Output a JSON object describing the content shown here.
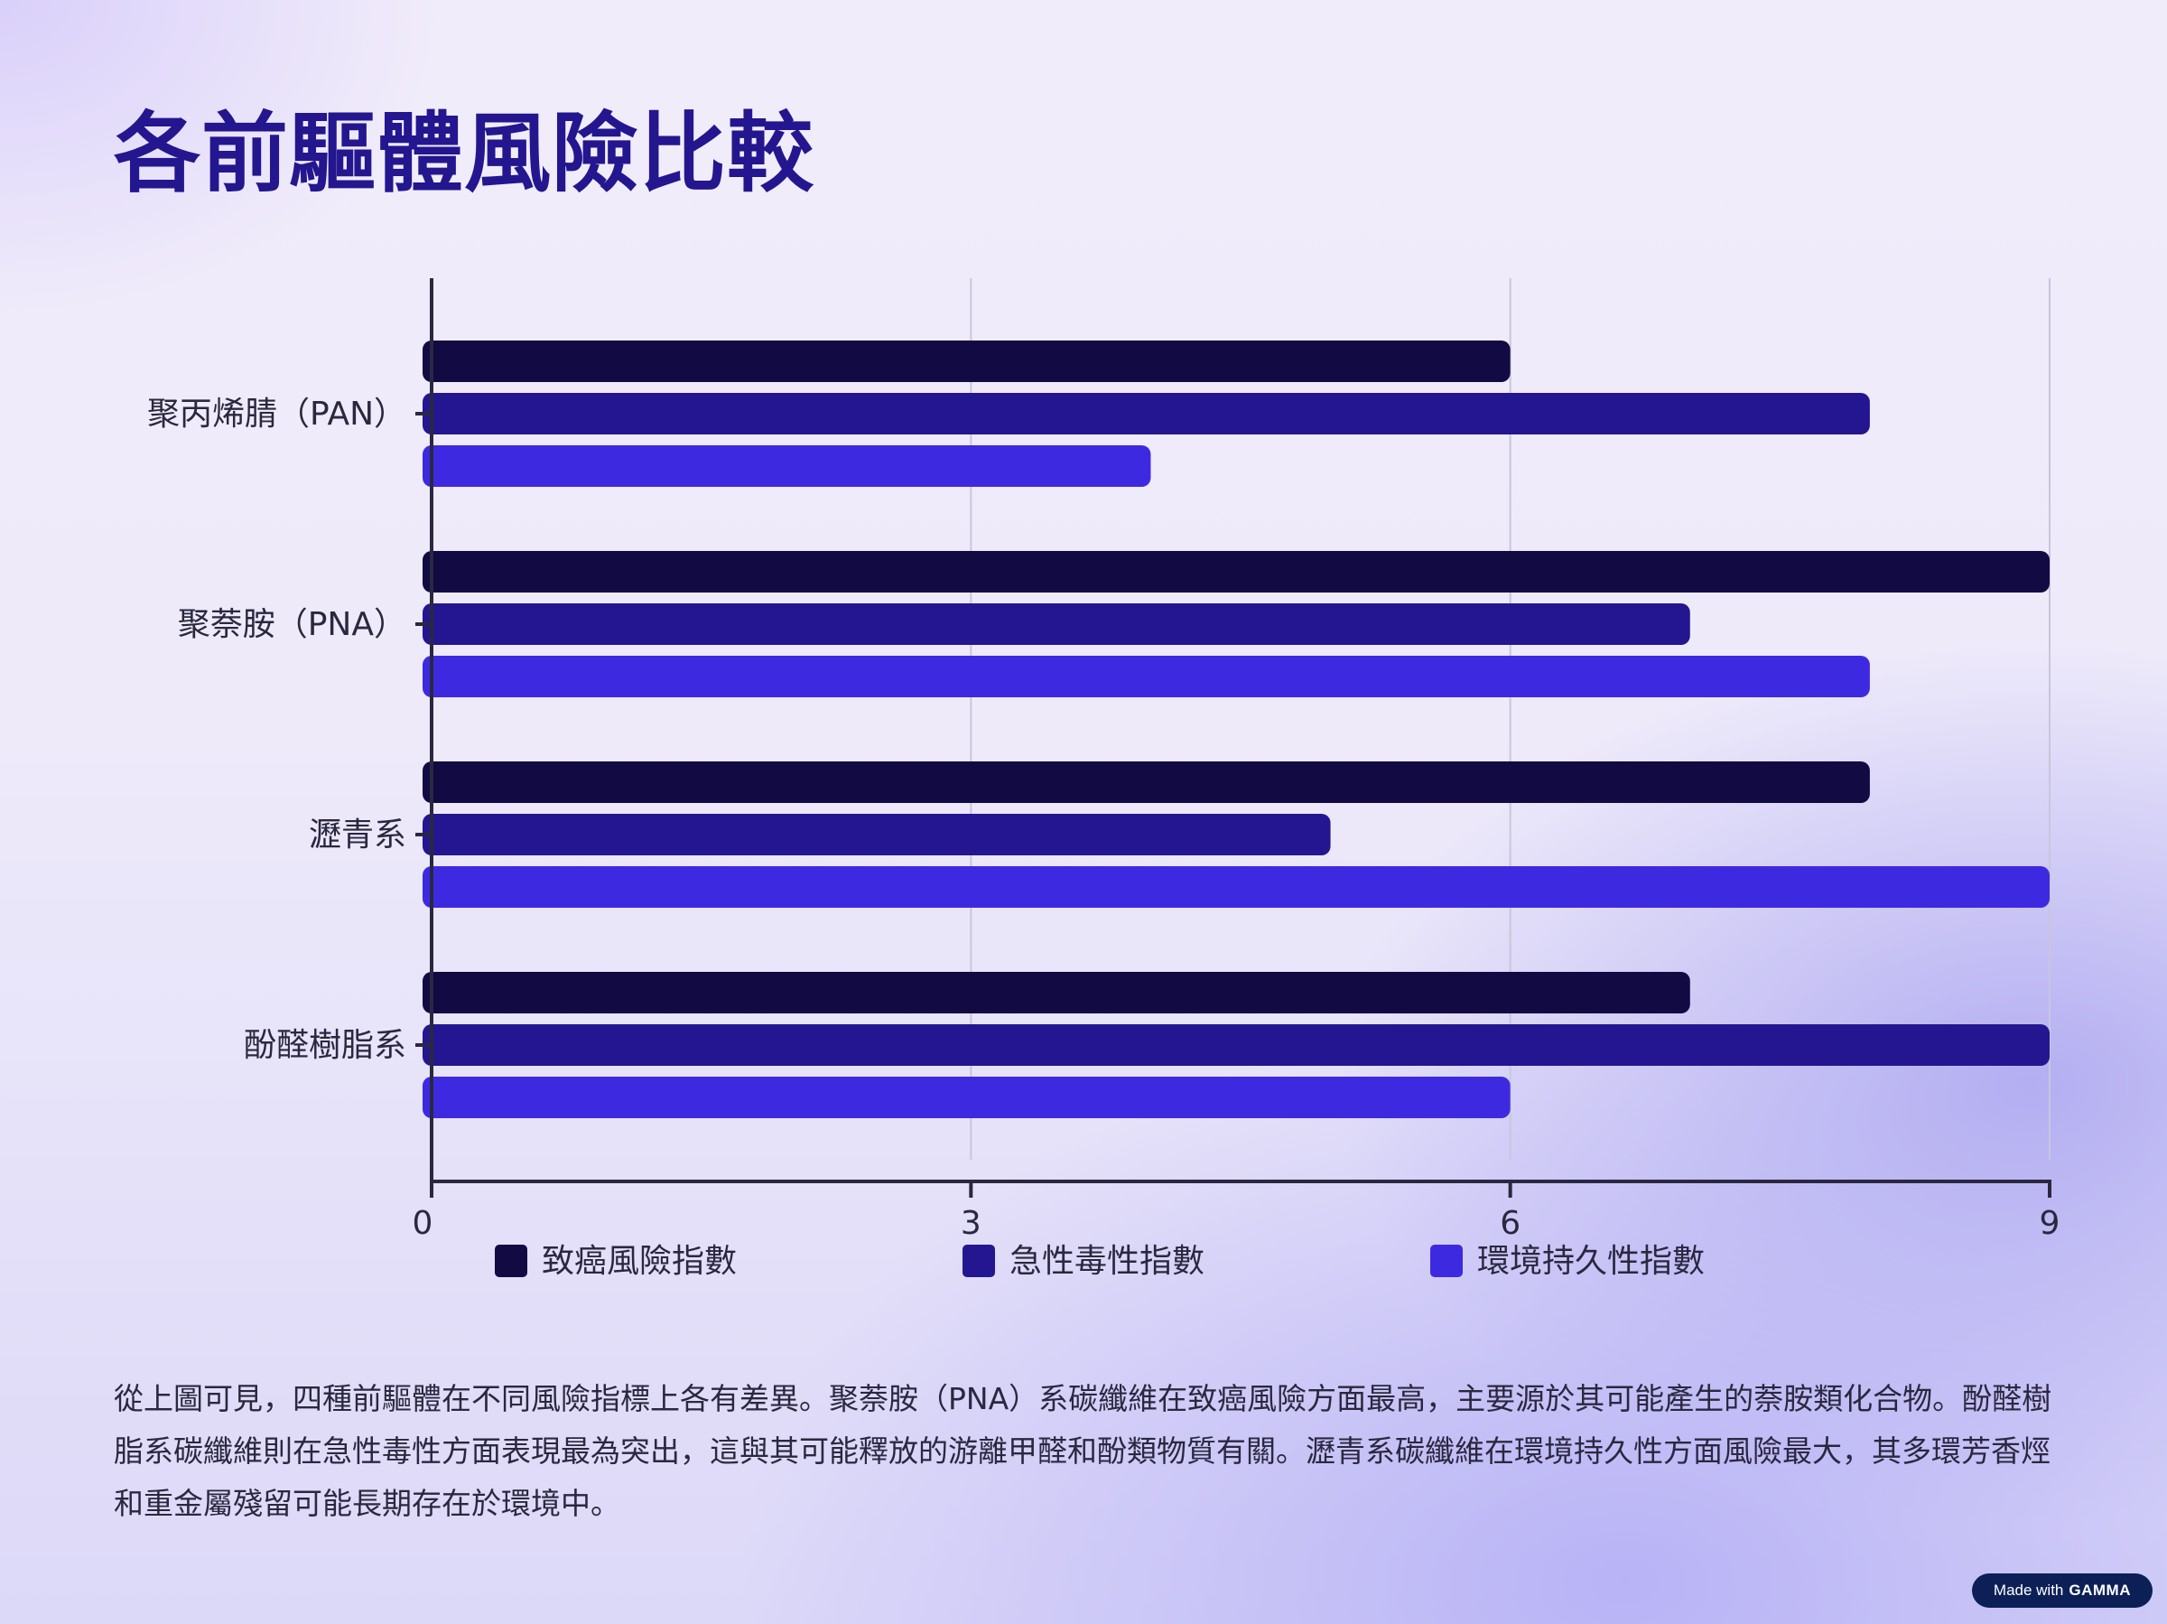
{
  "title": "各前驅體風險比較",
  "description": "從上圖可見，四種前驅體在不同風險指標上各有差異。聚萘胺（PNA）系碳纖維在致癌風險方面最高，主要源於其可能產生的萘胺類化合物。酚醛樹脂系碳纖維則在急性毒性方面表現最為突出，這與其可能釋放的游離甲醛和酚類物質有關。瀝青系碳纖維在環境持久性方面風險最大，其多環芳香烴和重金屬殘留可能長期存在於環境中。",
  "badge": {
    "prefix": "Made with",
    "brand": "GAMMA"
  },
  "chart_data": {
    "type": "bar",
    "orientation": "horizontal",
    "categories": [
      "聚丙烯腈（PAN）",
      "聚萘胺（PNA）",
      "瀝青系",
      "酚醛樹脂系"
    ],
    "series": [
      {
        "name": "致癌風險指數",
        "color": "#120a42",
        "values": [
          6,
          9,
          8,
          7
        ]
      },
      {
        "name": "急性毒性指數",
        "color": "#241690",
        "values": [
          8,
          7,
          5,
          9
        ]
      },
      {
        "name": "環境持久性指數",
        "color": "#3d2ae0",
        "values": [
          4,
          8,
          9,
          6
        ]
      }
    ],
    "xlim": [
      0,
      9
    ],
    "xticks": [
      0,
      3,
      6,
      9
    ],
    "grid": true,
    "legend": "bottom"
  }
}
